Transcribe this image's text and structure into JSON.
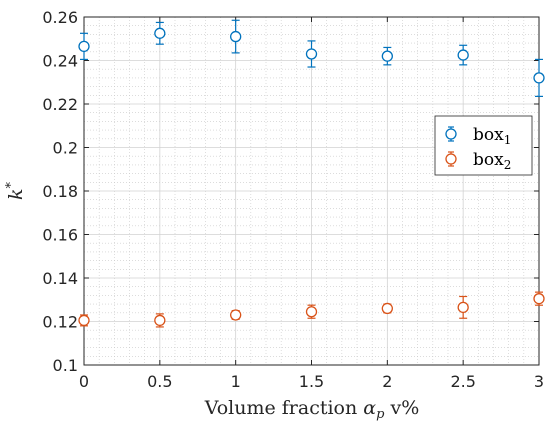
{
  "chart_data": {
    "type": "scatter",
    "xlabel": "Volume fraction αp v%",
    "xlabel_parts": {
      "main": "Volume fraction ",
      "symbol": "α",
      "subscript": "p",
      "unit": " v%"
    },
    "ylabel": "k*",
    "ylabel_parts": {
      "symbol": "k",
      "superscript": "*"
    },
    "xlim": [
      0,
      3
    ],
    "ylim": [
      0.1,
      0.26
    ],
    "xticks": [
      0,
      0.5,
      1,
      1.5,
      2,
      2.5,
      3
    ],
    "xtick_labels": [
      "0",
      "0.5",
      "1",
      "1.5",
      "2",
      "2.5",
      "3"
    ],
    "yticks": [
      0.1,
      0.12,
      0.14,
      0.16,
      0.18,
      0.2,
      0.22,
      0.24,
      0.26
    ],
    "ytick_labels": [
      "0.1",
      "0.12",
      "0.14",
      "0.16",
      "0.18",
      "0.2",
      "0.22",
      "0.24",
      "0.26"
    ],
    "grid": true,
    "minor_grid": true,
    "legend_position": "right",
    "series": [
      {
        "name": "box1",
        "label_main": "box",
        "label_sub": "1",
        "color": "#0072BD",
        "x": [
          0,
          0.5,
          1,
          1.5,
          2,
          2.5,
          3
        ],
        "y": [
          0.2465,
          0.2525,
          0.251,
          0.243,
          0.242,
          0.2425,
          0.232
        ],
        "err": [
          0.006,
          0.005,
          0.0075,
          0.006,
          0.004,
          0.0045,
          0.0085
        ]
      },
      {
        "name": "box2",
        "label_main": "box",
        "label_sub": "2",
        "color": "#D95319",
        "x": [
          0,
          0.5,
          1,
          1.5,
          2,
          2.5,
          3
        ],
        "y": [
          0.1205,
          0.1205,
          0.123,
          0.1245,
          0.126,
          0.1265,
          0.1305
        ],
        "err": [
          0.0025,
          0.003,
          0.002,
          0.003,
          0.002,
          0.005,
          0.003
        ]
      }
    ]
  }
}
